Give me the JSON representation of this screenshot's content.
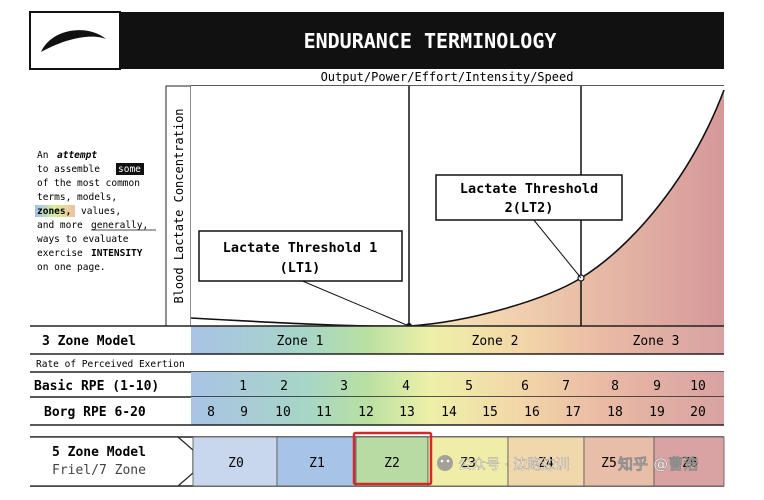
{
  "title": "ENDURANCE TERMINOLOGY",
  "x_axis_label": "Output/Power/Effort/Intensity/Speed",
  "y_axis_label": "Blood Lactate Concentration",
  "intro": {
    "w_an": "An",
    "w_attempt": "attempt",
    "w_to_assemble": "to assemble",
    "w_some": "some",
    "l3": "of the most common",
    "l4": "terms, models,",
    "w_zones": "zones,",
    "w_values": "values,",
    "w_and_more": "and more",
    "w_generally": "generally,",
    "l7": "ways to evaluate",
    "w_exercise": "exercise",
    "w_intensity": "INTENSITY",
    "l9": "on one page."
  },
  "callouts": {
    "lt1_line1": "Lactate Threshold 1",
    "lt1_line2": "(LT1)",
    "lt2_line1": "Lactate Threshold",
    "lt2_line2": "2(LT2)"
  },
  "three_zone": {
    "label": "3 Zone Model",
    "zones": [
      "Zone 1",
      "Zone 2",
      "Zone 3"
    ]
  },
  "rpe_header": "Rate of Perceived Exertion",
  "basic_rpe": {
    "label": "Basic RPE (1-10)",
    "values": [
      "1",
      "2",
      "3",
      "4",
      "5",
      "6",
      "7",
      "8",
      "9",
      "10"
    ]
  },
  "borg_rpe": {
    "label": "Borg RPE 6-20",
    "values": [
      "8",
      "9",
      "10",
      "11",
      "12",
      "13",
      "14",
      "15",
      "16",
      "17",
      "18",
      "19",
      "20"
    ]
  },
  "five_zone": {
    "label_line1": "5 Zone Model",
    "label_line2": "Friel/7 Zone",
    "zones": [
      "Z0",
      "Z1",
      "Z2",
      "Z3",
      "Z4",
      "Z5",
      "Z6"
    ]
  },
  "watermark": {
    "left": "公众号 · 边跑边训",
    "right": "知乎 @曹浩"
  },
  "colors": {
    "header_bar": "#111111",
    "highlight_box": "#d62828",
    "zone_blue": "#a8c4e4",
    "zone_green": "#b5dca0",
    "zone_yellow": "#f1ecaa",
    "zone_orange": "#eec3a2",
    "zone_red": "#d9a0a0"
  }
}
